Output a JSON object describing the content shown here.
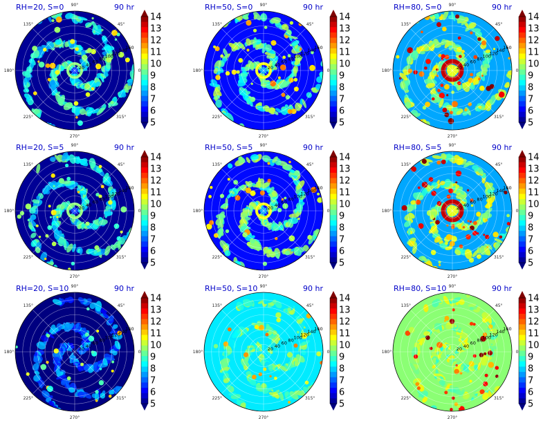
{
  "figure": {
    "panels": [
      {
        "rh": 20,
        "s": 0,
        "title": "RH=20, S=0",
        "time": "90 hr"
      },
      {
        "rh": 50,
        "s": 0,
        "title": "RH=50, S=0",
        "time": "90 hr"
      },
      {
        "rh": 80,
        "s": 0,
        "title": "RH=80, S=0",
        "time": "90 hr"
      },
      {
        "rh": 20,
        "s": 5,
        "title": "RH=20, S=5",
        "time": "90 hr"
      },
      {
        "rh": 50,
        "s": 5,
        "title": "RH=50, S=5",
        "time": "90 hr"
      },
      {
        "rh": 80,
        "s": 5,
        "title": "RH=80, S=5",
        "time": "90 hr"
      },
      {
        "rh": 20,
        "s": 10,
        "title": "RH=20, S=10",
        "time": "90 hr"
      },
      {
        "rh": 50,
        "s": 10,
        "title": "RH=50, S=10",
        "time": "90 hr"
      },
      {
        "rh": 80,
        "s": 10,
        "title": "RH=80, S=10",
        "time": "90 hr"
      }
    ]
  },
  "chart_data": {
    "type": "heatmap",
    "projection": "polar",
    "layout": "3x3 grid",
    "angle_ticks": [
      "90°",
      "45°",
      "0°",
      "315°",
      "270°",
      "225°",
      "180°",
      "135°"
    ],
    "radial_ticks": [
      20,
      40,
      60,
      80,
      100,
      120,
      140,
      160
    ],
    "radial_range": [
      0,
      160
    ],
    "colorbar": {
      "ticks": [
        "14",
        "13",
        "12",
        "11",
        "10",
        "9",
        "8",
        "7",
        "6",
        "5"
      ],
      "range": [
        5,
        14
      ],
      "colormap": "jet",
      "extend": "both"
    },
    "grid": true,
    "panels": [
      {
        "label": "RH=20, S=0",
        "time": "90 hr",
        "pattern": "spiral rainbands with weak core"
      },
      {
        "label": "RH=50, S=0",
        "time": "90 hr",
        "pattern": "spiral rainbands with ring near 20"
      },
      {
        "label": "RH=80, S=0",
        "time": "90 hr",
        "pattern": "strong eyewall ring near 20-30"
      },
      {
        "label": "RH=20, S=5",
        "time": "90 hr",
        "pattern": "scattered cells"
      },
      {
        "label": "RH=50, S=5",
        "time": "90 hr",
        "pattern": "broad band structure"
      },
      {
        "label": "RH=80, S=5",
        "time": "90 hr",
        "pattern": "intense eyewall and outer cells"
      },
      {
        "label": "RH=20, S=10",
        "time": "90 hr",
        "pattern": "sparse cells, mostly dry"
      },
      {
        "label": "RH=50, S=10",
        "time": "90 hr",
        "pattern": "asymmetric convection to the east"
      },
      {
        "label": "RH=80, S=10",
        "time": "90 hr",
        "pattern": "widespread moist field with intense cells"
      }
    ]
  }
}
